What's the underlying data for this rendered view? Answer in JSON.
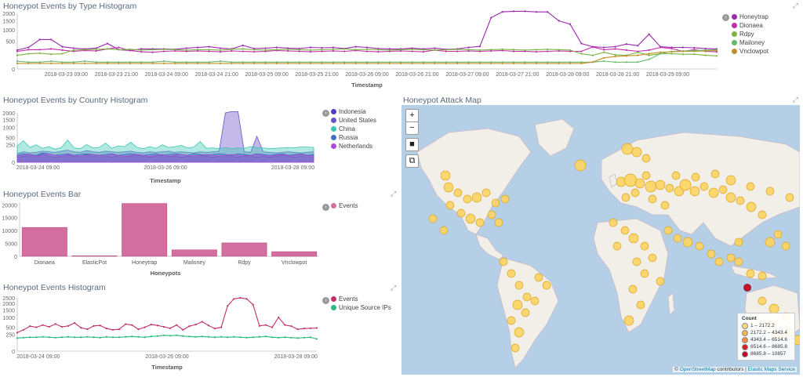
{
  "panels": {
    "type_hist": {
      "title": "Honeypot Events by Type Histogram",
      "xlabel": "Timestamp"
    },
    "country_hist": {
      "title": "Honeypot Events by Country Histogram",
      "xlabel": "Timestamp"
    },
    "bar": {
      "title": "Honeypot Events Bar",
      "xlabel": "Honeypots"
    },
    "events_hist": {
      "title": "Honeypot Events Histogram",
      "xlabel": "Timestamp"
    },
    "map": {
      "title": "Honeypot Attack Map"
    }
  },
  "map": {
    "zoom_in": "+",
    "zoom_out": "−",
    "legend_title": "Count",
    "legend": [
      {
        "label": "1 – 2172.2",
        "color": "#fed976"
      },
      {
        "label": "2172.2 – 4343.4",
        "color": "#feb24c"
      },
      {
        "label": "4343.4 – 6514.6",
        "color": "#fd8d3c"
      },
      {
        "label": "6514.6 – 8685.8",
        "color": "#e31a1c"
      },
      {
        "label": "8685.8 – 10857",
        "color": "#bd0026"
      }
    ],
    "attribution_prefix": "©",
    "attribution_osm": "OpenStreetMap",
    "attribution_mid": "contributors |",
    "attribution_ems": "Elastic Maps Service"
  },
  "chart_data": [
    {
      "type": "line",
      "title": "Honeypot Events by Type Histogram",
      "xlabel": "Timestamp",
      "x_ticks": [
        "2018-03-23 09:00",
        "2018-03-23 21:00",
        "2018-03-24 09:00",
        "2018-03-24 21:00",
        "2018-03-25 09:00",
        "2018-03-25 21:00",
        "2018-03-26 09:00",
        "2018-03-26 21:00",
        "2018-03-27 09:00",
        "2018-03-27 21:00",
        "2018-03-28 09:00",
        "2018-03-28 21:00",
        "2018-03-29 09:00"
      ],
      "y_ticks": [
        0,
        500,
        1000,
        1500,
        2000
      ],
      "y_scale": "sqrt",
      "series": [
        {
          "name": "Honeytrap",
          "color": "#9c27b0",
          "values": [
            230,
            300,
            560,
            560,
            320,
            280,
            260,
            280,
            420,
            240,
            220,
            260,
            260,
            260,
            250,
            280,
            300,
            320,
            280,
            260,
            360,
            270,
            280,
            300,
            280,
            270,
            300,
            290,
            300,
            270,
            320,
            300,
            270,
            260,
            260,
            280,
            260,
            280,
            250,
            260,
            300,
            330,
            1700,
            2100,
            2150,
            2150,
            2100,
            2100,
            1500,
            1300,
            420,
            320,
            300,
            320,
            400,
            350,
            780,
            320,
            300,
            300,
            290,
            270,
            260
          ]
        },
        {
          "name": "Dionaea",
          "color": "#c22cab",
          "values": [
            200,
            240,
            240,
            260,
            230,
            200,
            220,
            210,
            260,
            300,
            220,
            190,
            180,
            200,
            210,
            200,
            210,
            200,
            190,
            210,
            200,
            190,
            200,
            220,
            210,
            200,
            190,
            200,
            210,
            200,
            220,
            200,
            190,
            200,
            210,
            200,
            190,
            230,
            200,
            200,
            210,
            200,
            210,
            220,
            200,
            200,
            190,
            200,
            210,
            200,
            200,
            310,
            240,
            260,
            230,
            200,
            230,
            300,
            270,
            200,
            240,
            200,
            190
          ]
        },
        {
          "name": "Rdpy",
          "color": "#7cb342",
          "values": [
            120,
            150,
            160,
            140,
            150,
            230,
            240,
            250,
            260,
            240,
            250,
            230,
            240,
            250,
            240,
            230,
            240,
            240,
            230,
            250,
            260,
            240,
            230,
            240,
            250,
            240,
            230,
            240,
            250,
            260,
            240,
            250,
            240,
            230,
            240,
            250,
            240,
            230,
            240,
            250,
            240,
            230,
            240,
            250,
            240,
            230,
            240,
            250,
            240,
            230,
            150,
            120,
            180,
            130,
            120,
            180,
            120,
            150,
            150,
            140,
            140,
            120,
            110
          ]
        },
        {
          "name": "Mailoney",
          "color": "#66bb6a",
          "values": [
            40,
            30,
            30,
            40,
            30,
            30,
            40,
            30,
            30,
            30,
            30,
            30,
            30,
            40,
            30,
            30,
            30,
            30,
            40,
            30,
            30,
            30,
            30,
            30,
            30,
            30,
            30,
            30,
            30,
            30,
            30,
            30,
            30,
            30,
            30,
            30,
            30,
            30,
            30,
            30,
            30,
            30,
            30,
            30,
            30,
            30,
            30,
            30,
            30,
            30,
            30,
            30,
            40,
            30,
            30,
            30,
            60,
            150,
            200,
            210,
            220,
            230,
            240
          ]
        },
        {
          "name": "Vnclowpot",
          "color": "#bf8f2a",
          "values": [
            20,
            20,
            20,
            20,
            20,
            20,
            20,
            20,
            20,
            20,
            20,
            20,
            20,
            20,
            20,
            20,
            20,
            20,
            20,
            20,
            20,
            20,
            20,
            20,
            20,
            20,
            20,
            20,
            20,
            20,
            20,
            20,
            20,
            20,
            20,
            20,
            20,
            20,
            20,
            20,
            20,
            20,
            20,
            20,
            20,
            20,
            20,
            20,
            20,
            20,
            20,
            30,
            80,
            100,
            110,
            120,
            150,
            180,
            190,
            200,
            200,
            210,
            220
          ]
        }
      ]
    },
    {
      "type": "area",
      "title": "Honeypot Events by Country Histogram",
      "xlabel": "Timestamp",
      "x_ticks": [
        "2018-03-24 09:00",
        "2018-03-26 09:00",
        "2018-03-28 09:00"
      ],
      "y_ticks": [
        0,
        250,
        500,
        1000,
        1500,
        2000
      ],
      "y_scale": "sqrt",
      "series": [
        {
          "name": "Indonesia",
          "color": "#4c3fc2",
          "values": [
            20,
            30,
            40,
            30,
            60,
            30,
            20,
            30,
            40,
            30,
            30,
            50,
            30,
            40,
            30,
            20,
            40,
            30,
            30,
            40,
            30,
            20,
            30,
            40,
            30,
            30,
            20,
            30,
            30,
            40,
            30,
            20,
            30,
            40,
            30,
            20,
            40,
            30,
            20,
            30,
            20,
            30,
            40,
            30,
            20,
            30,
            40,
            30
          ]
        },
        {
          "name": "United States",
          "color": "#6a52c8",
          "values": [
            60,
            90,
            70,
            80,
            100,
            90,
            80,
            100,
            120,
            90,
            80,
            110,
            90,
            80,
            100,
            90,
            80,
            90,
            100,
            80,
            70,
            90,
            80,
            90,
            100,
            80,
            90,
            80,
            70,
            90,
            80,
            90,
            100,
            2000,
            2100,
            2100,
            90,
            80,
            550,
            90,
            80,
            70,
            80,
            90,
            80,
            70,
            80,
            90
          ]
        },
        {
          "name": "China",
          "color": "#3cc6b5",
          "values": [
            220,
            380,
            180,
            250,
            160,
            200,
            140,
            180,
            400,
            170,
            150,
            260,
            170,
            180,
            300,
            160,
            220,
            200,
            330,
            180,
            150,
            200,
            160,
            250,
            180,
            200,
            230,
            170,
            190,
            350,
            160,
            170,
            150,
            180,
            150,
            170,
            160,
            200,
            180,
            170,
            150,
            160,
            170,
            180,
            170,
            200,
            190,
            180
          ]
        },
        {
          "name": "Russia",
          "color": "#3f6fbf",
          "values": [
            40,
            60,
            50,
            40,
            70,
            60,
            40,
            50,
            60,
            40,
            50,
            60,
            50,
            40,
            50,
            60,
            40,
            50,
            60,
            50,
            40,
            50,
            60,
            40,
            50,
            60,
            50,
            40,
            60,
            50,
            40,
            50,
            60,
            50,
            40,
            60,
            50,
            40,
            60,
            50,
            40,
            50,
            60,
            40,
            50,
            60,
            40,
            50
          ]
        },
        {
          "name": "Netherlands",
          "color": "#b34ad6",
          "values": [
            30,
            40,
            50,
            30,
            40,
            60,
            40,
            30,
            50,
            40,
            30,
            40,
            50,
            40,
            30,
            50,
            40,
            30,
            40,
            50,
            40,
            30,
            40,
            50,
            30,
            40,
            50,
            40,
            30,
            40,
            50,
            40,
            30,
            40,
            50,
            40,
            30,
            40,
            50,
            40,
            30,
            40,
            50,
            30,
            40,
            50,
            40,
            30
          ]
        }
      ]
    },
    {
      "type": "bar",
      "title": "Honeypot Events Bar",
      "xlabel": "Honeypots",
      "categories": [
        "Dionaea",
        "ElasticPot",
        "Honeytrap",
        "Mailoney",
        "Rdpy",
        "Vnclowpot"
      ],
      "series": [
        {
          "name": "Events",
          "color": "#d36fa0",
          "values": [
            11200,
            200,
            20500,
            2500,
            5200,
            1800
          ]
        }
      ],
      "y_ticks": [
        0,
        5000,
        10000,
        15000,
        20000
      ],
      "ylim": [
        0,
        21000
      ]
    },
    {
      "type": "line",
      "title": "Honeypot Events Histogram",
      "xlabel": "Timestamp",
      "x_ticks": [
        "2018-03-24 09:00",
        "2018-03-26 09:00",
        "2018-03-28 09:00"
      ],
      "y_ticks": [
        0,
        250,
        500,
        1000,
        1500,
        2000,
        2500
      ],
      "y_scale": "sqrt",
      "series": [
        {
          "name": "Events",
          "color": "#c0306b",
          "values": [
            300,
            400,
            550,
            500,
            600,
            520,
            650,
            520,
            560,
            700,
            480,
            420,
            560,
            580,
            450,
            400,
            420,
            640,
            600,
            420,
            500,
            620,
            580,
            520,
            460,
            600,
            400,
            550,
            620,
            760,
            580,
            450,
            500,
            1800,
            2400,
            2500,
            2400,
            1900,
            560,
            600,
            500,
            1000,
            600,
            550,
            420,
            450,
            460,
            470
          ]
        },
        {
          "name": "Unique Source IPs",
          "color": "#2bb97e",
          "values": [
            150,
            160,
            170,
            170,
            180,
            170,
            160,
            170,
            180,
            170,
            170,
            180,
            170,
            160,
            180,
            170,
            170,
            180,
            190,
            180,
            170,
            190,
            200,
            220,
            210,
            220,
            200,
            190,
            180,
            190,
            180,
            170,
            180,
            170,
            180,
            170,
            160,
            170,
            180,
            190,
            170,
            160,
            170,
            160,
            150,
            160,
            170,
            130
          ]
        }
      ]
    }
  ]
}
